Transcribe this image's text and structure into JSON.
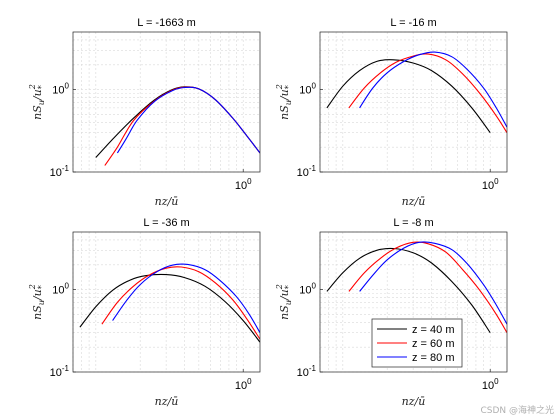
{
  "figure": {
    "watermark": "CSDN @海神之光",
    "legend": {
      "location": "bottom-right",
      "panel": 3
    }
  },
  "chart_data": [
    {
      "type": "line",
      "title": "L = -1663 m",
      "xlabel": "nz/ū",
      "ylabel": "nS_u/u_*^2",
      "xscale": "log",
      "yscale": "log",
      "xlim": [
        0.07,
        1.3
      ],
      "ylim": [
        0.1,
        5
      ],
      "xticks": [
        {
          "value": 1,
          "label": "10^0"
        }
      ],
      "yticks": [
        {
          "value": 0.1,
          "label": "10^-1"
        },
        {
          "value": 1,
          "label": "10^0"
        }
      ],
      "grid": true,
      "series": [
        {
          "name": "z = 40 m",
          "color": "#000000",
          "x": [
            0.1,
            0.13,
            0.18,
            0.25,
            0.33,
            0.4,
            0.5,
            0.65,
            0.85,
            1.05,
            1.3
          ],
          "y": [
            0.15,
            0.25,
            0.45,
            0.75,
            1.0,
            1.08,
            1.02,
            0.75,
            0.45,
            0.28,
            0.17
          ]
        },
        {
          "name": "z = 60 m",
          "color": "#ff0000",
          "x": [
            0.115,
            0.14,
            0.18,
            0.25,
            0.33,
            0.4,
            0.5,
            0.65,
            0.85,
            1.05,
            1.3
          ],
          "y": [
            0.12,
            0.2,
            0.42,
            0.73,
            0.98,
            1.07,
            1.02,
            0.75,
            0.45,
            0.28,
            0.17
          ]
        },
        {
          "name": "z = 80 m",
          "color": "#0000ff",
          "x": [
            0.14,
            0.16,
            0.19,
            0.25,
            0.33,
            0.4,
            0.5,
            0.65,
            0.85,
            1.05,
            1.3
          ],
          "y": [
            0.17,
            0.25,
            0.42,
            0.72,
            0.97,
            1.06,
            1.02,
            0.75,
            0.45,
            0.28,
            0.17
          ]
        }
      ]
    },
    {
      "type": "line",
      "title": "L = -16 m",
      "xlabel": "nz/ū",
      "ylabel": "nS_u/u_*^2",
      "xscale": "log",
      "yscale": "log",
      "xlim": [
        0.07,
        1.3
      ],
      "ylim": [
        0.1,
        5
      ],
      "xticks": [
        {
          "value": 1,
          "label": "10^0"
        }
      ],
      "yticks": [
        {
          "value": 0.1,
          "label": "10^-1"
        },
        {
          "value": 1,
          "label": "10^0"
        }
      ],
      "grid": true,
      "series": [
        {
          "name": "z = 40 m",
          "color": "#000000",
          "x": [
            0.078,
            0.1,
            0.13,
            0.17,
            0.22,
            0.3,
            0.4,
            0.55,
            0.75,
            1.0
          ],
          "y": [
            0.6,
            1.1,
            1.7,
            2.2,
            2.3,
            2.1,
            1.7,
            1.1,
            0.6,
            0.3
          ]
        },
        {
          "name": "z = 60 m",
          "color": "#ff0000",
          "x": [
            0.11,
            0.14,
            0.18,
            0.23,
            0.3,
            0.38,
            0.5,
            0.65,
            0.85,
            1.1,
            1.3
          ],
          "y": [
            0.6,
            1.05,
            1.6,
            2.15,
            2.55,
            2.7,
            2.3,
            1.55,
            0.9,
            0.48,
            0.3
          ]
        },
        {
          "name": "z = 80 m",
          "color": "#0000ff",
          "x": [
            0.13,
            0.16,
            0.2,
            0.26,
            0.33,
            0.42,
            0.55,
            0.7,
            0.9,
            1.1,
            1.3
          ],
          "y": [
            0.6,
            1.05,
            1.6,
            2.2,
            2.65,
            2.85,
            2.5,
            1.75,
            1.05,
            0.6,
            0.35
          ]
        }
      ]
    },
    {
      "type": "line",
      "title": "L = -36 m",
      "xlabel": "nz/ū",
      "ylabel": "nS_u/u_*^2",
      "xscale": "log",
      "yscale": "log",
      "xlim": [
        0.07,
        1.3
      ],
      "ylim": [
        0.1,
        5
      ],
      "xticks": [
        {
          "value": 1,
          "label": "10^0"
        }
      ],
      "yticks": [
        {
          "value": 0.1,
          "label": "10^-1"
        },
        {
          "value": 1,
          "label": "10^0"
        }
      ],
      "grid": true,
      "series": [
        {
          "name": "z = 40 m",
          "color": "#000000",
          "x": [
            0.078,
            0.1,
            0.13,
            0.17,
            0.22,
            0.3,
            0.4,
            0.55,
            0.75,
            1.0,
            1.3
          ],
          "y": [
            0.35,
            0.62,
            0.98,
            1.3,
            1.48,
            1.52,
            1.4,
            1.1,
            0.72,
            0.42,
            0.23
          ]
        },
        {
          "name": "z = 60 m",
          "color": "#ff0000",
          "x": [
            0.11,
            0.14,
            0.18,
            0.23,
            0.3,
            0.38,
            0.5,
            0.65,
            0.85,
            1.05,
            1.3
          ],
          "y": [
            0.38,
            0.7,
            1.1,
            1.5,
            1.82,
            1.88,
            1.65,
            1.2,
            0.75,
            0.45,
            0.25
          ]
        },
        {
          "name": "z = 80 m",
          "color": "#0000ff",
          "x": [
            0.13,
            0.16,
            0.2,
            0.26,
            0.33,
            0.42,
            0.55,
            0.7,
            0.9,
            1.1,
            1.3
          ],
          "y": [
            0.42,
            0.72,
            1.15,
            1.65,
            1.98,
            2.02,
            1.75,
            1.28,
            0.82,
            0.5,
            0.3
          ]
        }
      ]
    },
    {
      "type": "line",
      "title": "L = -8 m",
      "xlabel": "nz/ū",
      "ylabel": "nS_u/u_*^2",
      "xscale": "log",
      "yscale": "log",
      "xlim": [
        0.07,
        1.3
      ],
      "ylim": [
        0.1,
        5
      ],
      "xticks": [
        {
          "value": 1,
          "label": "10^0"
        }
      ],
      "yticks": [
        {
          "value": 0.1,
          "label": "10^-1"
        },
        {
          "value": 1,
          "label": "10^0"
        }
      ],
      "grid": true,
      "series": [
        {
          "name": "z = 40 m",
          "color": "#000000",
          "x": [
            0.078,
            0.1,
            0.13,
            0.17,
            0.22,
            0.3,
            0.4,
            0.55,
            0.75,
            1.0
          ],
          "y": [
            0.95,
            1.6,
            2.4,
            3.0,
            3.15,
            2.8,
            2.1,
            1.25,
            0.65,
            0.3
          ]
        },
        {
          "name": "z = 60 m",
          "color": "#ff0000",
          "x": [
            0.11,
            0.14,
            0.18,
            0.23,
            0.3,
            0.38,
            0.5,
            0.65,
            0.85,
            1.1,
            1.3
          ],
          "y": [
            0.95,
            1.6,
            2.4,
            3.2,
            3.75,
            3.6,
            2.85,
            1.75,
            0.98,
            0.5,
            0.3
          ]
        },
        {
          "name": "z = 80 m",
          "color": "#0000ff",
          "x": [
            0.13,
            0.16,
            0.2,
            0.26,
            0.33,
            0.42,
            0.55,
            0.7,
            0.9,
            1.1,
            1.3
          ],
          "y": [
            0.95,
            1.5,
            2.3,
            3.2,
            3.75,
            3.65,
            3.05,
            2.05,
            1.15,
            0.65,
            0.38
          ]
        }
      ]
    }
  ]
}
